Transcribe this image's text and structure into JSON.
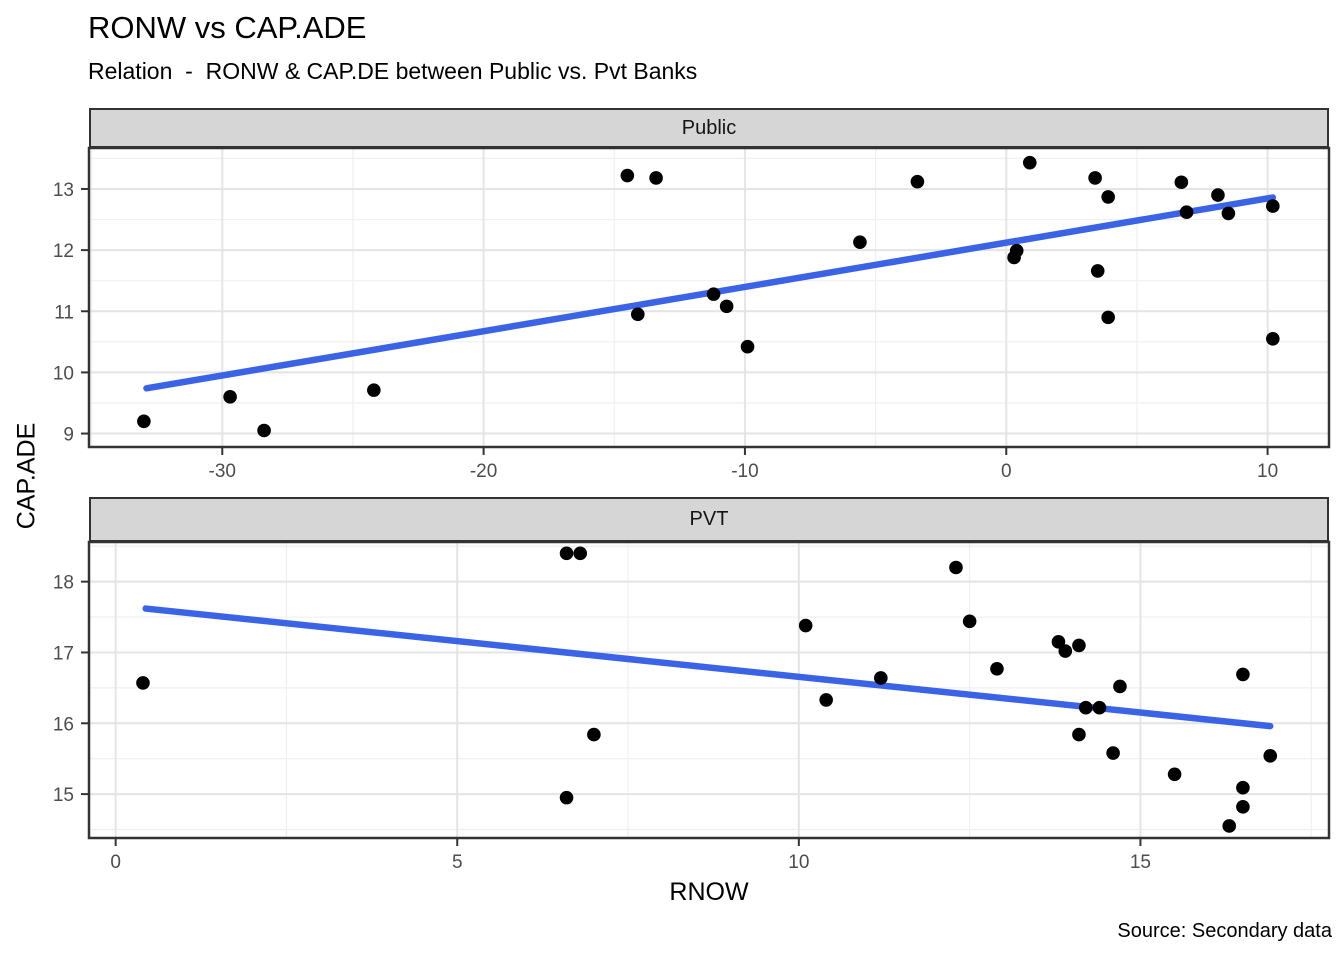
{
  "header": {
    "title": "RONW vs CAP.ADE",
    "subtitle": "Relation  -  RONW & CAP.DE between Public vs. Pvt Banks"
  },
  "axes": {
    "x_label": "RNOW",
    "y_label": "CAP.ADE"
  },
  "caption": "Source: Secondary data",
  "colors": {
    "point": "#000000",
    "trend": "#3B63E6",
    "grid_major": "#E4E4E4",
    "grid_minor": "#EFEFEF",
    "panel_border": "#333333",
    "axis_tick": "#333333",
    "strip_bg": "#D6D6D6",
    "tick_text": "#4D4D4D"
  },
  "chart_data": [
    {
      "type": "scatter",
      "facet_label": "Public",
      "xlabel": "RNOW",
      "ylabel": "CAP.ADE",
      "xlim": [
        -35.1,
        12.35
      ],
      "ylim": [
        8.78,
        13.67
      ],
      "x_ticks_major": [
        -30,
        -20,
        -10,
        0,
        10
      ],
      "x_ticks_minor": [
        -35,
        -25,
        -15,
        -5,
        5
      ],
      "y_ticks_major": [
        9,
        10,
        11,
        12,
        13
      ],
      "y_ticks_minor": [
        9.5,
        10.5,
        11.5,
        12.5,
        13.5
      ],
      "grid": true,
      "legend": "none",
      "trend": {
        "x1": -32.9,
        "y1": 9.74,
        "x2": 10.2,
        "y2": 12.86
      },
      "points": [
        [
          -33.0,
          9.2
        ],
        [
          -29.7,
          9.6
        ],
        [
          -28.4,
          9.05
        ],
        [
          -24.2,
          9.71
        ],
        [
          -14.5,
          13.22
        ],
        [
          -13.4,
          13.18
        ],
        [
          -14.1,
          10.95
        ],
        [
          -11.2,
          11.28
        ],
        [
          -10.7,
          11.08
        ],
        [
          -9.9,
          10.42
        ],
        [
          -5.6,
          12.13
        ],
        [
          -3.4,
          13.12
        ],
        [
          0.3,
          11.88
        ],
        [
          0.4,
          11.99
        ],
        [
          0.9,
          13.43
        ],
        [
          3.4,
          13.18
        ],
        [
          3.9,
          12.87
        ],
        [
          3.5,
          11.66
        ],
        [
          3.9,
          10.9
        ],
        [
          6.7,
          13.11
        ],
        [
          6.9,
          12.62
        ],
        [
          8.1,
          12.9
        ],
        [
          8.5,
          12.6
        ],
        [
          10.2,
          12.72
        ],
        [
          10.2,
          10.55
        ]
      ]
    },
    {
      "type": "scatter",
      "facet_label": "PVT",
      "xlabel": "RNOW",
      "ylabel": "CAP.ADE",
      "xlim": [
        -0.39,
        17.76
      ],
      "ylim": [
        14.38,
        18.56
      ],
      "x_ticks_major": [
        0,
        5,
        10,
        15
      ],
      "x_ticks_minor": [
        2.5,
        7.5,
        12.5,
        17.5
      ],
      "y_ticks_major": [
        15,
        16,
        17,
        18
      ],
      "y_ticks_minor": [
        14.5,
        15.5,
        16.5,
        17.5,
        18.5
      ],
      "grid": true,
      "legend": "none",
      "trend": {
        "x1": 0.44,
        "y1": 17.62,
        "x2": 16.9,
        "y2": 15.96
      },
      "points": [
        [
          0.4,
          16.57
        ],
        [
          6.6,
          18.4
        ],
        [
          6.8,
          18.4
        ],
        [
          6.6,
          14.95
        ],
        [
          7.0,
          15.84
        ],
        [
          10.1,
          17.38
        ],
        [
          10.4,
          16.33
        ],
        [
          11.2,
          16.64
        ],
        [
          12.3,
          18.2
        ],
        [
          12.5,
          17.44
        ],
        [
          12.9,
          16.77
        ],
        [
          13.8,
          17.15
        ],
        [
          14.1,
          17.1
        ],
        [
          13.9,
          17.02
        ],
        [
          14.2,
          16.22
        ],
        [
          14.4,
          16.22
        ],
        [
          14.1,
          15.84
        ],
        [
          14.7,
          16.52
        ],
        [
          14.6,
          15.58
        ],
        [
          15.5,
          15.28
        ],
        [
          16.5,
          16.69
        ],
        [
          16.9,
          15.54
        ],
        [
          16.5,
          15.09
        ],
        [
          16.5,
          14.82
        ],
        [
          16.3,
          14.55
        ]
      ]
    }
  ]
}
